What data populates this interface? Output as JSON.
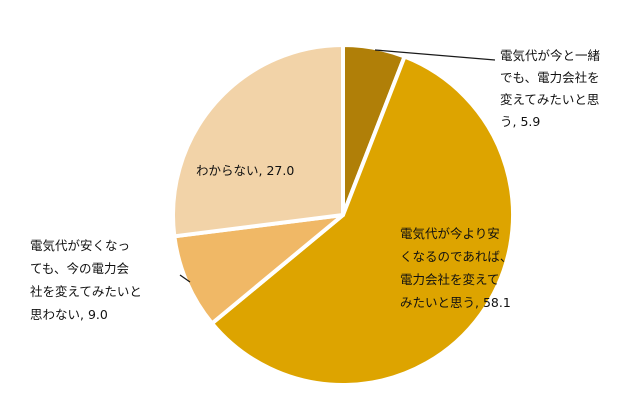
{
  "chart_data": {
    "type": "pie",
    "title": "",
    "start_angle_deg": 0,
    "direction": "clockwise",
    "slices": [
      {
        "name": "電気代が今と一緒でも、電力会社を変えてみたいと思う",
        "value": 5.9,
        "label_lines": [
          "電気代が今と一緒",
          "でも、電力会社を",
          "変えてみたいと思",
          "う, 5.9"
        ],
        "color": "#b07f08"
      },
      {
        "name": "電気代が今より安くなるのであれば、電力会社を変えてみたいと思う",
        "value": 58.1,
        "label_lines": [
          "電気代が今より安",
          "くなるのであれば、",
          "電力会社を変えて",
          "みたいと思う, 58.1"
        ],
        "color": "#dda400"
      },
      {
        "name": "電気代が安くなっても、今の電力会社を変えてみたいと思わない",
        "value": 9.0,
        "label_lines": [
          "電気代が安くなっ",
          "ても、今の電力会",
          "社を変えてみたいと",
          "思わない, 9.0"
        ],
        "color": "#f0b866"
      },
      {
        "name": "わからない",
        "value": 27.0,
        "label_lines": [
          "わからない, 27.0"
        ],
        "color": "#f2d3a8"
      }
    ]
  }
}
